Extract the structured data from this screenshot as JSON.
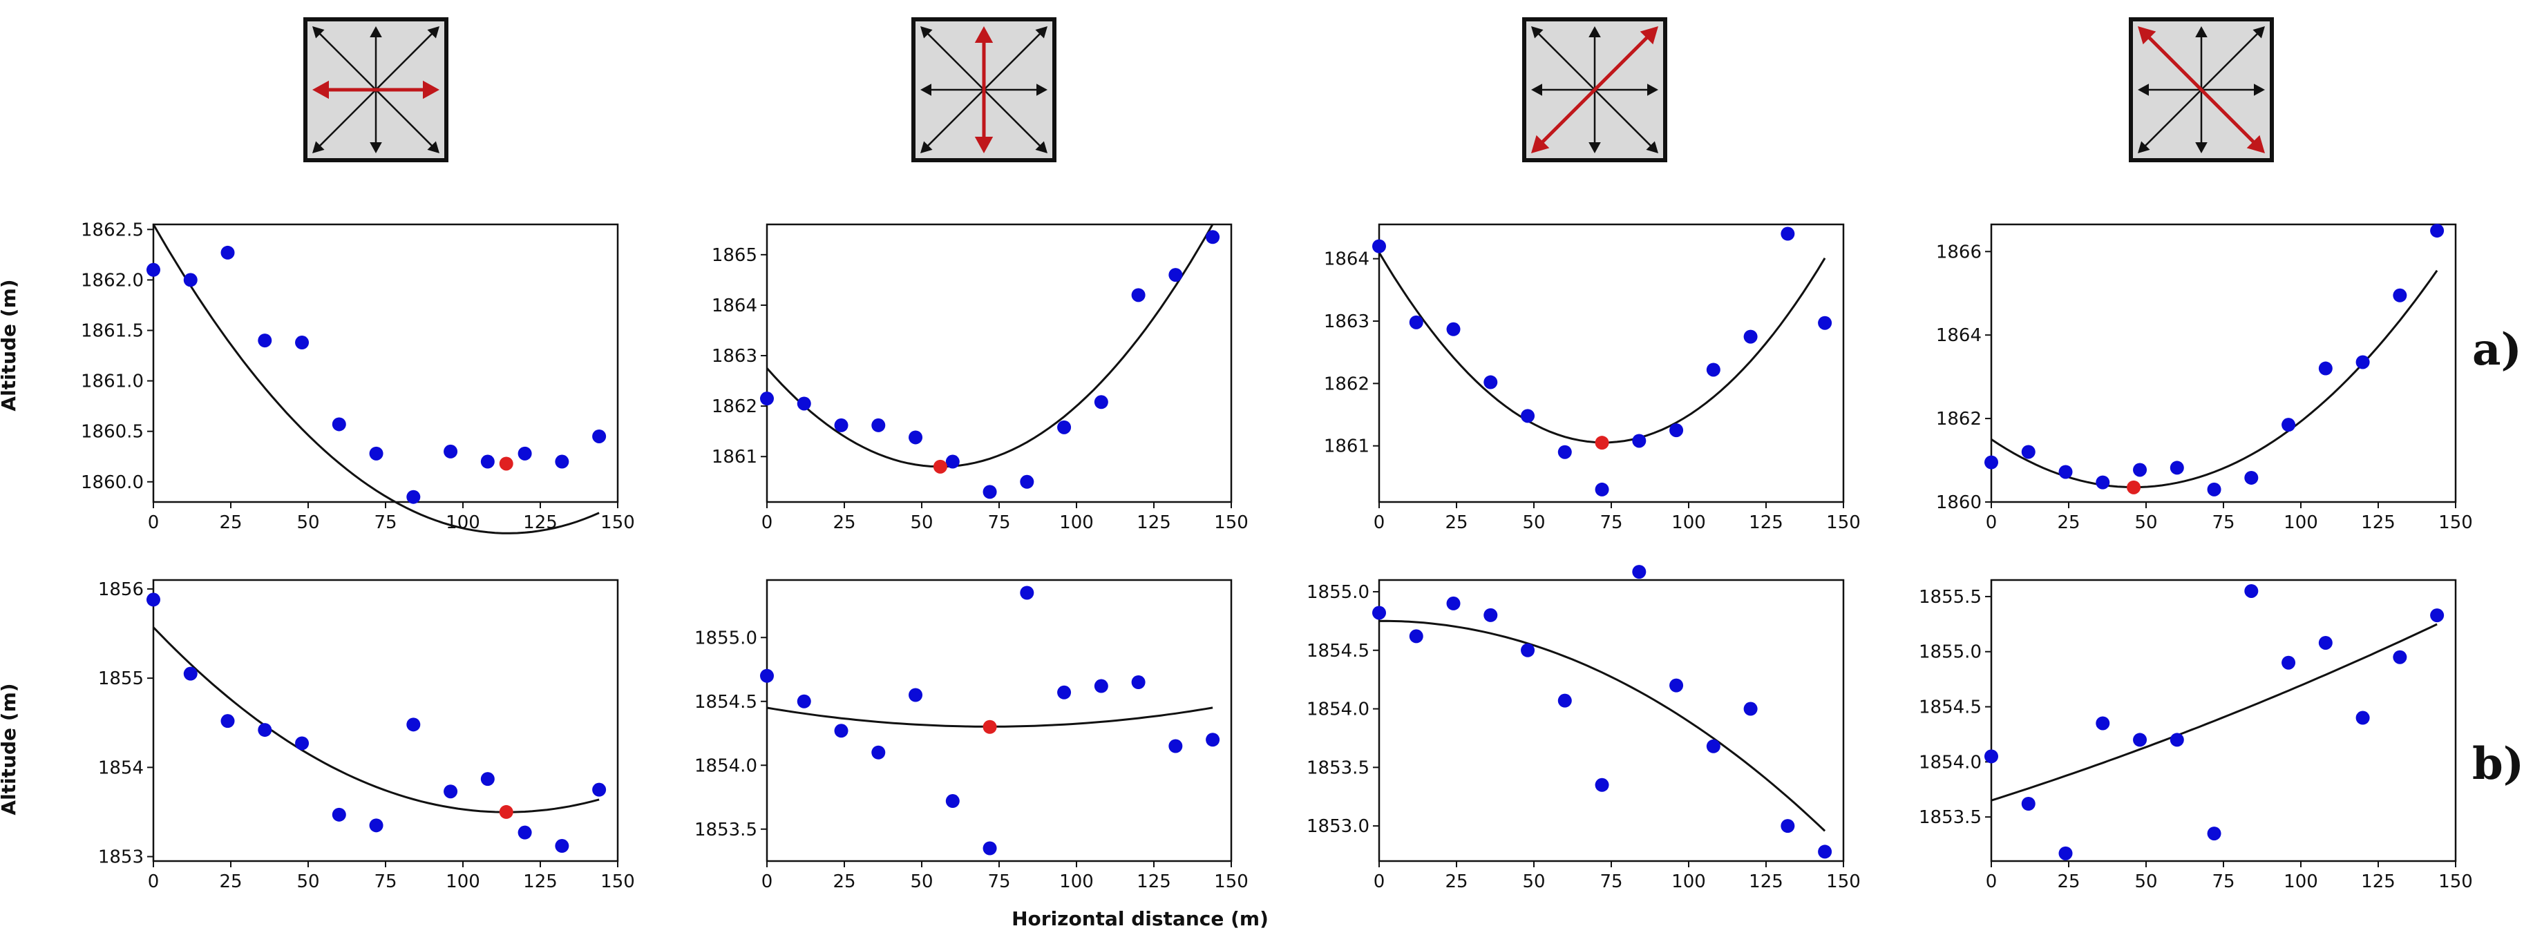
{
  "figure": {
    "xlabel": "Horizontal distance (m)",
    "ylabel": "Altitude (m)",
    "row_labels": [
      "a)",
      "b)"
    ]
  },
  "direction_icons": [
    {
      "name": "horizontal-direction-icon",
      "highlight": "horizontal"
    },
    {
      "name": "vertical-direction-icon",
      "highlight": "vertical"
    },
    {
      "name": "diagonal-up-direction-icon",
      "highlight": "diagonal-sw-ne"
    },
    {
      "name": "diagonal-down-direction-icon",
      "highlight": "diagonal-nw-se"
    }
  ],
  "colors": {
    "points": "#0a0ad8",
    "minimum": "#e02020",
    "curve": "#111111",
    "arrow_highlight": "#c0171b",
    "icon_fill": "#d9d9d9"
  },
  "chart_data": [
    {
      "type": "scatter",
      "row": "a)",
      "col": 1,
      "xlim": [
        0,
        150
      ],
      "ylim": [
        1859.8,
        1862.55
      ],
      "xticks": [
        0,
        25,
        50,
        75,
        100,
        125,
        150
      ],
      "yticks": [
        1860.0,
        1860.5,
        1861.0,
        1861.5,
        1862.0,
        1862.5
      ],
      "ytick_labels": [
        "1860.0",
        "1860.5",
        "1861.0",
        "1861.5",
        "1862.0",
        "1862.5"
      ],
      "x": [
        0,
        12,
        24,
        36,
        48,
        60,
        72,
        84,
        96,
        108,
        120,
        132,
        144
      ],
      "y": [
        1862.1,
        1862.0,
        1862.27,
        1861.4,
        1861.38,
        1860.57,
        1860.28,
        1859.85,
        1860.3,
        1860.2,
        1860.28,
        1860.2,
        1860.45
      ],
      "fit": [
        0.000233,
        -0.0534,
        1862.55
      ],
      "minimum": {
        "x": 114,
        "y": 1860.18
      }
    },
    {
      "type": "scatter",
      "row": "a)",
      "col": 2,
      "xlim": [
        0,
        150
      ],
      "ylim": [
        1860.1,
        1865.6
      ],
      "xticks": [
        0,
        25,
        50,
        75,
        100,
        125,
        150
      ],
      "yticks": [
        1861,
        1862,
        1863,
        1864,
        1865
      ],
      "ytick_labels": [
        "1861",
        "1862",
        "1863",
        "1864",
        "1865"
      ],
      "x": [
        0,
        12,
        24,
        36,
        48,
        60,
        72,
        84,
        96,
        108,
        120,
        132,
        144
      ],
      "y": [
        1862.15,
        1862.05,
        1861.62,
        1861.62,
        1861.38,
        1860.9,
        1860.3,
        1860.5,
        1861.58,
        1862.08,
        1864.2,
        1864.6,
        1865.35
      ],
      "fit": [
        0.000621,
        -0.0696,
        1862.75
      ],
      "minimum": {
        "x": 56,
        "y": 1860.8
      }
    },
    {
      "type": "scatter",
      "row": "a)",
      "col": 3,
      "xlim": [
        0,
        150
      ],
      "ylim": [
        1860.1,
        1864.55
      ],
      "xticks": [
        0,
        25,
        50,
        75,
        100,
        125,
        150
      ],
      "yticks": [
        1861,
        1862,
        1863,
        1864
      ],
      "ytick_labels": [
        "1861",
        "1862",
        "1863",
        "1864"
      ],
      "x": [
        0,
        12,
        24,
        36,
        48,
        60,
        72,
        84,
        96,
        108,
        120,
        132,
        144
      ],
      "y": [
        1864.2,
        1862.98,
        1862.87,
        1862.02,
        1861.48,
        1860.9,
        1860.3,
        1861.08,
        1861.25,
        1862.22,
        1862.75,
        1864.4,
        1862.97
      ],
      "fit": [
        0.000579,
        -0.084,
        1864.1
      ],
      "minimum": {
        "x": 72,
        "y": 1861.05
      }
    },
    {
      "type": "scatter",
      "row": "a)",
      "col": 4,
      "xlim": [
        0,
        150
      ],
      "ylim": [
        1860.0,
        1866.65
      ],
      "xticks": [
        0,
        25,
        50,
        75,
        100,
        125,
        150
      ],
      "yticks": [
        1860,
        1862,
        1864,
        1866
      ],
      "ytick_labels": [
        "1860",
        "1862",
        "1864",
        "1866"
      ],
      "x": [
        0,
        12,
        24,
        36,
        48,
        60,
        72,
        84,
        96,
        108,
        120,
        132,
        144
      ],
      "y": [
        1860.95,
        1861.2,
        1860.72,
        1860.47,
        1860.77,
        1860.82,
        1860.3,
        1860.58,
        1861.85,
        1863.2,
        1863.35,
        1864.95,
        1866.5
      ],
      "fit": [
        0.000541,
        -0.0498,
        1861.5
      ],
      "minimum": {
        "x": 46,
        "y": 1860.35
      }
    },
    {
      "type": "scatter",
      "row": "b)",
      "col": 1,
      "xlim": [
        0,
        150
      ],
      "ylim": [
        1852.95,
        1856.1
      ],
      "xticks": [
        0,
        25,
        50,
        75,
        100,
        125,
        150
      ],
      "yticks": [
        1853,
        1854,
        1855,
        1856
      ],
      "ytick_labels": [
        "1853",
        "1854",
        "1855",
        "1856"
      ],
      "x": [
        0,
        12,
        24,
        36,
        48,
        60,
        72,
        84,
        96,
        108,
        120,
        132,
        144
      ],
      "y": [
        1855.88,
        1855.05,
        1854.52,
        1854.42,
        1854.27,
        1853.47,
        1853.35,
        1854.48,
        1853.73,
        1853.87,
        1853.27,
        1853.12,
        1853.75
      ],
      "fit": [
        0.000159,
        -0.0363,
        1855.57
      ],
      "minimum": {
        "x": 114,
        "y": 1853.5
      }
    },
    {
      "type": "scatter",
      "row": "b)",
      "col": 2,
      "xlim": [
        0,
        150
      ],
      "ylim": [
        1853.25,
        1855.45
      ],
      "xticks": [
        0,
        25,
        50,
        75,
        100,
        125,
        150
      ],
      "yticks": [
        1853.5,
        1854.0,
        1854.5,
        1855.0
      ],
      "ytick_labels": [
        "1853.5",
        "1854.0",
        "1854.5",
        "1855.0"
      ],
      "x": [
        0,
        12,
        24,
        36,
        48,
        60,
        72,
        84,
        96,
        108,
        120,
        132,
        144
      ],
      "y": [
        1854.7,
        1854.5,
        1854.27,
        1854.1,
        1854.55,
        1853.72,
        1853.35,
        1855.35,
        1854.57,
        1854.62,
        1854.65,
        1854.15,
        1854.2
      ],
      "fit": [
        2.85e-05,
        -0.0041,
        1854.45
      ],
      "minimum": {
        "x": 72,
        "y": 1854.3
      }
    },
    {
      "type": "scatter",
      "row": "b)",
      "col": 3,
      "xlim": [
        0,
        150
      ],
      "ylim": [
        1852.7,
        1855.1
      ],
      "xticks": [
        0,
        25,
        50,
        75,
        100,
        125,
        150
      ],
      "yticks": [
        1853.0,
        1853.5,
        1854.0,
        1854.5,
        1855.0
      ],
      "ytick_labels": [
        "1853.0",
        "1853.5",
        "1854.0",
        "1854.5",
        "1855.0"
      ],
      "x": [
        0,
        12,
        24,
        36,
        48,
        60,
        72,
        84,
        96,
        108,
        120,
        132,
        144
      ],
      "y": [
        1854.82,
        1854.62,
        1854.9,
        1854.8,
        1854.5,
        1854.07,
        1853.35,
        1855.17,
        1854.2,
        1853.68,
        1854.0,
        1853.0,
        1852.78
      ],
      "fit": [
        -8.82e-05,
        0.00025,
        1854.75
      ],
      "minimum": null
    },
    {
      "type": "scatter",
      "row": "b)",
      "col": 4,
      "xlim": [
        0,
        150
      ],
      "ylim": [
        1853.1,
        1855.65
      ],
      "xticks": [
        0,
        25,
        50,
        75,
        100,
        125,
        150
      ],
      "yticks": [
        1853.5,
        1854.0,
        1854.5,
        1855.0,
        1855.5
      ],
      "ytick_labels": [
        "1853.5",
        "1854.0",
        "1854.5",
        "1855.0",
        "1855.5"
      ],
      "x": [
        0,
        12,
        24,
        36,
        48,
        60,
        72,
        84,
        96,
        108,
        120,
        132,
        144
      ],
      "y": [
        1854.05,
        1853.62,
        1853.17,
        1854.35,
        1854.2,
        1854.2,
        1853.35,
        1855.55,
        1854.9,
        1855.08,
        1854.4,
        1854.95,
        1855.33
      ],
      "fit": [
        1.51e-05,
        0.00893,
        1853.65
      ],
      "minimum": null
    }
  ]
}
